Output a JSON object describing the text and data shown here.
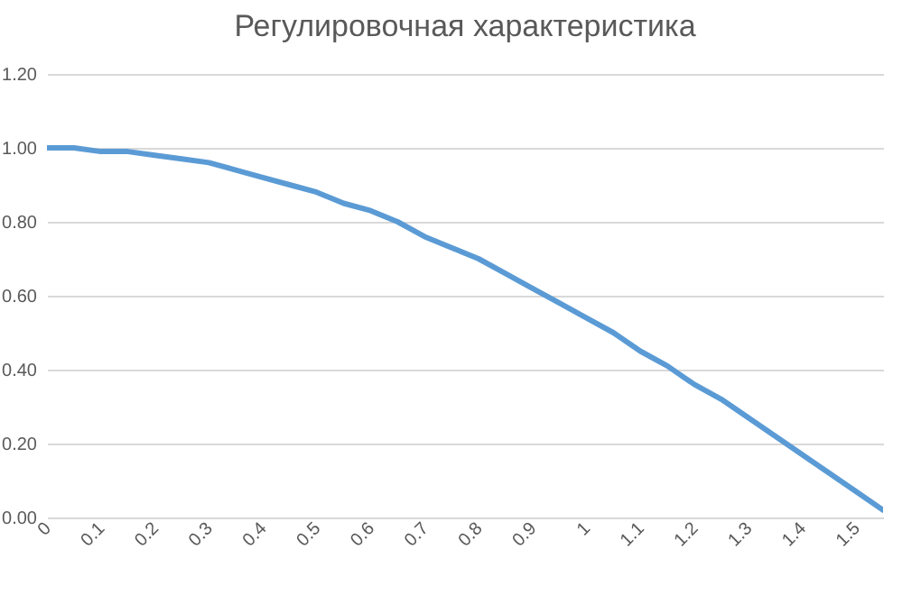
{
  "chart_data": {
    "type": "line",
    "title": "Регулировочная характеристика",
    "x": [
      0,
      0.05,
      0.1,
      0.15,
      0.2,
      0.25,
      0.3,
      0.35,
      0.4,
      0.45,
      0.5,
      0.55,
      0.6,
      0.65,
      0.7,
      0.75,
      0.8,
      0.85,
      0.9,
      0.95,
      1,
      1.05,
      1.1,
      1.15,
      1.2,
      1.25,
      1.3,
      1.35,
      1.4,
      1.45,
      1.5,
      1.55
    ],
    "series": [
      {
        "color": "#5b9bd5",
        "values": [
          1.0,
          1.0,
          0.99,
          0.99,
          0.98,
          0.97,
          0.96,
          0.94,
          0.92,
          0.9,
          0.88,
          0.85,
          0.83,
          0.8,
          0.76,
          0.73,
          0.7,
          0.66,
          0.62,
          0.58,
          0.54,
          0.5,
          0.45,
          0.41,
          0.36,
          0.32,
          0.27,
          0.22,
          0.17,
          0.12,
          0.07,
          0.02
        ]
      }
    ],
    "xlim": [
      0,
      1.55
    ],
    "xticks": [
      0,
      0.1,
      0.2,
      0.3,
      0.4,
      0.5,
      0.6,
      0.7,
      0.8,
      0.9,
      1,
      1.1,
      1.2,
      1.3,
      1.4,
      1.5
    ],
    "ylim": [
      0,
      1.2
    ],
    "yticks": [
      {
        "value": 0,
        "label": "0.00"
      },
      {
        "value": 0.2,
        "label": "0.20"
      },
      {
        "value": 0.4,
        "label": "0.40"
      },
      {
        "value": 0.6,
        "label": "0.60"
      },
      {
        "value": 0.8,
        "label": "0.80"
      },
      {
        "value": 1,
        "label": "1.00"
      },
      {
        "value": 1.2,
        "label": "1.20"
      }
    ],
    "grid": "y",
    "marker": "none",
    "line_style": "solid"
  }
}
